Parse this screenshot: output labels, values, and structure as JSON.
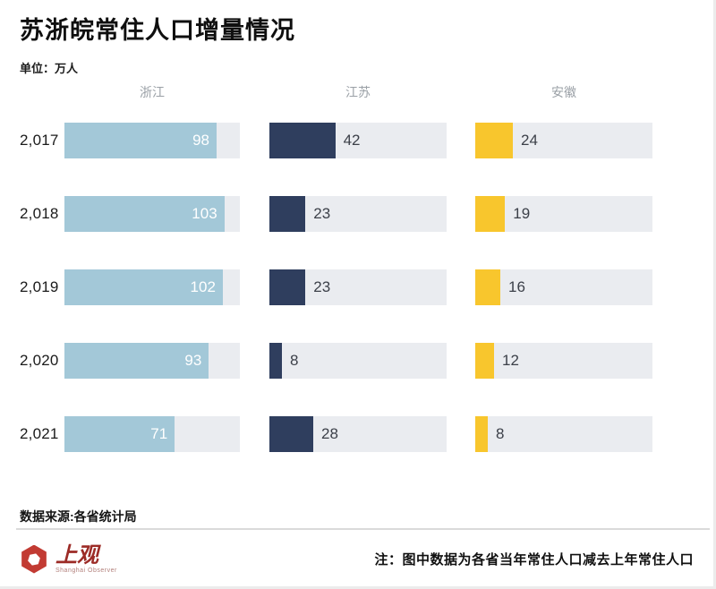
{
  "header": {
    "title": "苏浙皖常住人口增量情况",
    "unit_label": "单位：万人"
  },
  "chart_data": {
    "type": "bar",
    "orientation": "horizontal",
    "title": "苏浙皖常住人口增量情况",
    "unit": "万人",
    "categories": [
      "2,017",
      "2,018",
      "2,019",
      "2,020",
      "2,021"
    ],
    "series": [
      {
        "key": "zhejiang",
        "name": "浙江",
        "color": "#a3c8d8",
        "values": [
          98,
          103,
          102,
          93,
          71
        ],
        "label_inside": true,
        "label_color": "#ffffff"
      },
      {
        "key": "jiangsu",
        "name": "江苏",
        "color": "#2f3e5e",
        "values": [
          42,
          23,
          23,
          8,
          28
        ],
        "label_inside": false,
        "label_color": "#3c4049"
      },
      {
        "key": "anhui",
        "name": "安徽",
        "color": "#f8c62d",
        "values": [
          24,
          19,
          16,
          12,
          8
        ],
        "label_inside": false,
        "label_color": "#3c4049"
      }
    ],
    "xlim": [
      0,
      113
    ],
    "track_color": "#eaecf0",
    "grid": false,
    "legend_position": "top-column-headers"
  },
  "footer": {
    "source": "数据来源:各省统计局",
    "note": "注：图中数据为各省当年常住人口减去上年常住人口",
    "logo": {
      "name": "上观",
      "subtitle": "Shanghai Observer",
      "hex_color": "#c23b33",
      "text_color": "#9c2b26",
      "subtitle_color": "#b27f7a"
    }
  }
}
